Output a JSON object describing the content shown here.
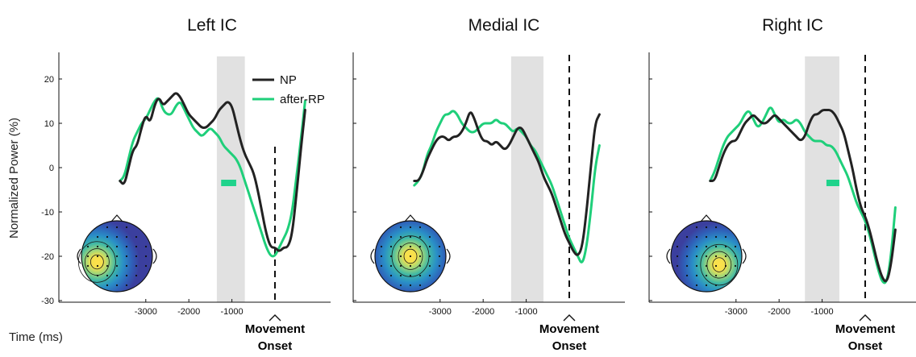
{
  "figure": {
    "ylabel": "Normalized Power (%)",
    "xlabel": "Time (ms)",
    "onset_label": [
      "Movement",
      "Onset"
    ],
    "legend": [
      {
        "name": "NP",
        "color": "#222222"
      },
      {
        "name": "after-RP",
        "color": "#1fcf7a"
      }
    ],
    "shade_color": "#e1e1e1",
    "sig_color": "#1fd38b"
  },
  "chart_data": [
    {
      "type": "line",
      "title": "Left IC",
      "xlim": [
        -3600,
        200
      ],
      "ylim": [
        -30,
        25
      ],
      "xticks": [
        -3000,
        -2000,
        -1000
      ],
      "yticks": [
        -30,
        -20,
        -10,
        0,
        10,
        20
      ],
      "shaded_region": [
        -1350,
        -700
      ],
      "significance_bar": [
        -1250,
        -900
      ],
      "significance_y": -2,
      "onset_x": 0,
      "topography": "left-lateral-focus",
      "series": [
        {
          "name": "NP",
          "points": [
            [
              -3600,
              -3
            ],
            [
              -3500,
              -4
            ],
            [
              -3400,
              0
            ],
            [
              -3300,
              4
            ],
            [
              -3200,
              5
            ],
            [
              -3100,
              9
            ],
            [
              -3000,
              12
            ],
            [
              -2900,
              10
            ],
            [
              -2800,
              14
            ],
            [
              -2700,
              16
            ],
            [
              -2600,
              14
            ],
            [
              -2500,
              15
            ],
            [
              -2400,
              16
            ],
            [
              -2300,
              17
            ],
            [
              -2200,
              16
            ],
            [
              -2100,
              14
            ],
            [
              -2000,
              12
            ],
            [
              -1900,
              11
            ],
            [
              -1800,
              10
            ],
            [
              -1700,
              9
            ],
            [
              -1600,
              9
            ],
            [
              -1500,
              10
            ],
            [
              -1400,
              11
            ],
            [
              -1300,
              13
            ],
            [
              -1200,
              14
            ],
            [
              -1100,
              15
            ],
            [
              -1000,
              14
            ],
            [
              -900,
              10
            ],
            [
              -800,
              6
            ],
            [
              -700,
              3
            ],
            [
              -600,
              1
            ],
            [
              -500,
              -1
            ],
            [
              -400,
              -5
            ],
            [
              -300,
              -10
            ],
            [
              -200,
              -15
            ],
            [
              -100,
              -18
            ],
            [
              0,
              -18
            ],
            [
              100,
              -19
            ],
            [
              200,
              -18
            ],
            [
              300,
              -18
            ],
            [
              400,
              -15
            ],
            [
              500,
              -6
            ],
            [
              600,
              4
            ],
            [
              700,
              13
            ]
          ]
        },
        {
          "name": "after-RP",
          "points": [
            [
              -3600,
              -3
            ],
            [
              -3500,
              -2
            ],
            [
              -3400,
              2
            ],
            [
              -3300,
              6
            ],
            [
              -3200,
              8
            ],
            [
              -3100,
              10
            ],
            [
              -3000,
              11
            ],
            [
              -2900,
              13
            ],
            [
              -2800,
              15
            ],
            [
              -2700,
              16
            ],
            [
              -2600,
              13
            ],
            [
              -2500,
              12
            ],
            [
              -2400,
              12
            ],
            [
              -2300,
              14
            ],
            [
              -2200,
              15
            ],
            [
              -2100,
              13
            ],
            [
              -2000,
              11
            ],
            [
              -1900,
              9
            ],
            [
              -1800,
              8
            ],
            [
              -1700,
              7
            ],
            [
              -1600,
              8
            ],
            [
              -1500,
              9
            ],
            [
              -1400,
              8
            ],
            [
              -1300,
              7
            ],
            [
              -1200,
              5
            ],
            [
              -1100,
              4
            ],
            [
              -1000,
              3
            ],
            [
              -900,
              2
            ],
            [
              -800,
              0
            ],
            [
              -700,
              -3
            ],
            [
              -600,
              -6
            ],
            [
              -500,
              -9
            ],
            [
              -400,
              -12
            ],
            [
              -300,
              -15
            ],
            [
              -200,
              -18
            ],
            [
              -100,
              -20
            ],
            [
              0,
              -20
            ],
            [
              100,
              -18
            ],
            [
              200,
              -16
            ],
            [
              300,
              -14
            ],
            [
              400,
              -10
            ],
            [
              500,
              -2
            ],
            [
              600,
              6
            ],
            [
              700,
              15
            ]
          ]
        }
      ]
    },
    {
      "type": "line",
      "title": "Medial IC",
      "xlim": [
        -3600,
        1200
      ],
      "ylim": [
        -30,
        25
      ],
      "xticks": [
        -3000,
        -2000,
        -1000
      ],
      "yticks": [
        -30,
        -20,
        -10,
        0,
        10,
        20
      ],
      "shaded_region": [
        -1350,
        -600
      ],
      "onset_x": 0,
      "topography": "central-focus",
      "series": [
        {
          "name": "NP",
          "points": [
            [
              -3600,
              -3
            ],
            [
              -3500,
              -3
            ],
            [
              -3400,
              -1
            ],
            [
              -3300,
              2
            ],
            [
              -3200,
              4
            ],
            [
              -3100,
              6
            ],
            [
              -3000,
              7
            ],
            [
              -2900,
              7
            ],
            [
              -2800,
              6
            ],
            [
              -2700,
              7
            ],
            [
              -2600,
              7
            ],
            [
              -2500,
              8
            ],
            [
              -2400,
              10
            ],
            [
              -2300,
              13
            ],
            [
              -2200,
              11
            ],
            [
              -2100,
              8
            ],
            [
              -2000,
              6
            ],
            [
              -1900,
              6
            ],
            [
              -1800,
              5
            ],
            [
              -1700,
              6
            ],
            [
              -1600,
              5
            ],
            [
              -1500,
              4
            ],
            [
              -1400,
              5
            ],
            [
              -1300,
              7
            ],
            [
              -1200,
              9
            ],
            [
              -1100,
              9
            ],
            [
              -1000,
              7
            ],
            [
              -900,
              5
            ],
            [
              -800,
              3
            ],
            [
              -700,
              1
            ],
            [
              -600,
              -2
            ],
            [
              -500,
              -4
            ],
            [
              -400,
              -6
            ],
            [
              -300,
              -9
            ],
            [
              -200,
              -12
            ],
            [
              -100,
              -15
            ],
            [
              0,
              -17
            ],
            [
              100,
              -19
            ],
            [
              200,
              -20
            ],
            [
              300,
              -18
            ],
            [
              400,
              -10
            ],
            [
              500,
              0
            ],
            [
              600,
              10
            ],
            [
              700,
              12
            ]
          ]
        },
        {
          "name": "after-RP",
          "points": [
            [
              -3600,
              -4
            ],
            [
              -3500,
              -3
            ],
            [
              -3400,
              -1
            ],
            [
              -3300,
              3
            ],
            [
              -3200,
              5
            ],
            [
              -3100,
              8
            ],
            [
              -3000,
              10
            ],
            [
              -2900,
              12
            ],
            [
              -2800,
              12
            ],
            [
              -2700,
              13
            ],
            [
              -2600,
              12
            ],
            [
              -2500,
              10
            ],
            [
              -2400,
              9
            ],
            [
              -2300,
              8
            ],
            [
              -2200,
              8
            ],
            [
              -2100,
              9
            ],
            [
              -2000,
              10
            ],
            [
              -1900,
              10
            ],
            [
              -1800,
              10
            ],
            [
              -1700,
              11
            ],
            [
              -1600,
              10
            ],
            [
              -1500,
              10
            ],
            [
              -1400,
              9
            ],
            [
              -1300,
              8
            ],
            [
              -1200,
              9
            ],
            [
              -1100,
              8
            ],
            [
              -1000,
              7
            ],
            [
              -900,
              5
            ],
            [
              -800,
              4
            ],
            [
              -700,
              2
            ],
            [
              -600,
              0
            ],
            [
              -500,
              -2
            ],
            [
              -400,
              -4
            ],
            [
              -300,
              -7
            ],
            [
              -200,
              -10
            ],
            [
              -100,
              -13
            ],
            [
              0,
              -16
            ],
            [
              100,
              -18
            ],
            [
              200,
              -20
            ],
            [
              300,
              -22
            ],
            [
              400,
              -18
            ],
            [
              500,
              -10
            ],
            [
              600,
              0
            ],
            [
              700,
              5
            ]
          ]
        }
      ]
    },
    {
      "type": "line",
      "title": "Right IC",
      "xlim": [
        -3600,
        1200
      ],
      "ylim": [
        -30,
        25
      ],
      "xticks": [
        -3000,
        -2000,
        -1000
      ],
      "yticks": [
        -30,
        -20,
        -10,
        0,
        10,
        20
      ],
      "shaded_region": [
        -1400,
        -600
      ],
      "significance_bar": [
        -900,
        -600
      ],
      "significance_y": -2,
      "onset_x": 0,
      "topography": "right-lateral-focus",
      "series": [
        {
          "name": "NP",
          "points": [
            [
              -3600,
              -3
            ],
            [
              -3500,
              -3
            ],
            [
              -3400,
              0
            ],
            [
              -3300,
              3
            ],
            [
              -3200,
              5
            ],
            [
              -3100,
              6
            ],
            [
              -3000,
              6
            ],
            [
              -2900,
              8
            ],
            [
              -2800,
              10
            ],
            [
              -2700,
              11
            ],
            [
              -2600,
              12
            ],
            [
              -2500,
              11
            ],
            [
              -2400,
              10
            ],
            [
              -2300,
              10
            ],
            [
              -2200,
              11
            ],
            [
              -2100,
              12
            ],
            [
              -2000,
              11
            ],
            [
              -1900,
              10
            ],
            [
              -1800,
              9
            ],
            [
              -1700,
              8
            ],
            [
              -1600,
              7
            ],
            [
              -1500,
              6
            ],
            [
              -1400,
              7
            ],
            [
              -1300,
              10
            ],
            [
              -1200,
              12
            ],
            [
              -1100,
              12
            ],
            [
              -1000,
              13
            ],
            [
              -900,
              13
            ],
            [
              -800,
              13
            ],
            [
              -700,
              12
            ],
            [
              -600,
              10
            ],
            [
              -500,
              8
            ],
            [
              -400,
              4
            ],
            [
              -300,
              0
            ],
            [
              -200,
              -5
            ],
            [
              -100,
              -9
            ],
            [
              0,
              -11
            ],
            [
              100,
              -14
            ],
            [
              200,
              -18
            ],
            [
              300,
              -22
            ],
            [
              400,
              -25
            ],
            [
              500,
              -26
            ],
            [
              600,
              -22
            ],
            [
              700,
              -14
            ]
          ]
        },
        {
          "name": "after-RP",
          "points": [
            [
              -3600,
              -3
            ],
            [
              -3500,
              -1
            ],
            [
              -3400,
              2
            ],
            [
              -3300,
              5
            ],
            [
              -3200,
              7
            ],
            [
              -3100,
              8
            ],
            [
              -3000,
              9
            ],
            [
              -2900,
              10
            ],
            [
              -2800,
              12
            ],
            [
              -2700,
              13
            ],
            [
              -2600,
              11
            ],
            [
              -2500,
              9
            ],
            [
              -2400,
              10
            ],
            [
              -2300,
              12
            ],
            [
              -2200,
              14
            ],
            [
              -2100,
              12
            ],
            [
              -2000,
              10
            ],
            [
              -1900,
              11
            ],
            [
              -1800,
              10
            ],
            [
              -1700,
              10
            ],
            [
              -1600,
              11
            ],
            [
              -1500,
              10
            ],
            [
              -1400,
              8
            ],
            [
              -1300,
              7
            ],
            [
              -1200,
              6
            ],
            [
              -1100,
              6
            ],
            [
              -1000,
              6
            ],
            [
              -900,
              5
            ],
            [
              -800,
              5
            ],
            [
              -700,
              4
            ],
            [
              -600,
              2
            ],
            [
              -500,
              0
            ],
            [
              -400,
              -2
            ],
            [
              -300,
              -5
            ],
            [
              -200,
              -8
            ],
            [
              -100,
              -10
            ],
            [
              0,
              -12
            ],
            [
              100,
              -15
            ],
            [
              200,
              -19
            ],
            [
              300,
              -23
            ],
            [
              400,
              -26
            ],
            [
              500,
              -26
            ],
            [
              600,
              -20
            ],
            [
              700,
              -9
            ]
          ]
        }
      ]
    }
  ]
}
